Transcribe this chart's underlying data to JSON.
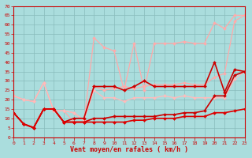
{
  "xlabel": "Vent moyen/en rafales ( km/h )",
  "xlim": [
    0,
    23
  ],
  "ylim": [
    0,
    70
  ],
  "yticks": [
    0,
    5,
    10,
    15,
    20,
    25,
    30,
    35,
    40,
    45,
    50,
    55,
    60,
    65,
    70
  ],
  "xticks": [
    0,
    1,
    2,
    3,
    4,
    5,
    6,
    7,
    8,
    9,
    10,
    11,
    12,
    13,
    14,
    15,
    16,
    17,
    18,
    19,
    20,
    21,
    22,
    23
  ],
  "bg_color": "#aadddd",
  "grid_color": "#88bbbb",
  "series": [
    {
      "x": [
        0,
        1,
        2,
        3,
        4,
        5,
        6,
        7,
        8,
        9,
        10,
        11,
        12,
        13,
        14,
        15,
        16,
        17,
        18,
        19,
        20,
        21,
        22,
        23
      ],
      "y": [
        22,
        20,
        19,
        29,
        14,
        14,
        13,
        9,
        27,
        25,
        26,
        27,
        26,
        27,
        28,
        28,
        28,
        29,
        28,
        28,
        32,
        34,
        62,
        65
      ],
      "color": "#ffaaaa",
      "marker": "D",
      "markersize": 2.0,
      "linewidth": 0.9,
      "zorder": 2
    },
    {
      "x": [
        0,
        1,
        2,
        3,
        4,
        5,
        6,
        7,
        8,
        9,
        10,
        11,
        12,
        13,
        14,
        15,
        16,
        17,
        18,
        19,
        20,
        21,
        22,
        23
      ],
      "y": [
        22,
        20,
        19,
        29,
        14,
        14,
        8,
        8,
        53,
        48,
        46,
        25,
        50,
        25,
        50,
        50,
        50,
        51,
        50,
        50,
        61,
        58,
        65,
        65
      ],
      "color": "#ffaaaa",
      "marker": "D",
      "markersize": 2.0,
      "linewidth": 0.9,
      "zorder": 2
    },
    {
      "x": [
        0,
        1,
        2,
        3,
        4,
        5,
        6,
        7,
        8,
        9,
        10,
        11,
        12,
        13,
        14,
        15,
        16,
        17,
        18,
        19,
        20,
        21,
        22,
        23
      ],
      "y": [
        22,
        20,
        19,
        29,
        14,
        14,
        13,
        9,
        25,
        21,
        21,
        19,
        21,
        21,
        21,
        22,
        21,
        22,
        21,
        21,
        21,
        21,
        31,
        35
      ],
      "color": "#ffbbbb",
      "marker": "D",
      "markersize": 2.0,
      "linewidth": 0.9,
      "zorder": 2
    },
    {
      "x": [
        0,
        1,
        2,
        3,
        4,
        5,
        6,
        7,
        8,
        9,
        10,
        11,
        12,
        13,
        14,
        15,
        16,
        17,
        18,
        19,
        20,
        21,
        22,
        23
      ],
      "y": [
        13,
        7,
        5,
        15,
        15,
        8,
        8,
        8,
        10,
        10,
        11,
        11,
        11,
        11,
        11,
        12,
        12,
        13,
        13,
        14,
        22,
        22,
        33,
        35
      ],
      "color": "#cc0000",
      "marker": "D",
      "markersize": 2.0,
      "linewidth": 1.2,
      "zorder": 3
    },
    {
      "x": [
        0,
        1,
        2,
        3,
        4,
        5,
        6,
        7,
        8,
        9,
        10,
        11,
        12,
        13,
        14,
        15,
        16,
        17,
        18,
        19,
        20,
        21,
        22,
        23
      ],
      "y": [
        13,
        7,
        5,
        15,
        15,
        8,
        10,
        10,
        27,
        27,
        27,
        25,
        27,
        30,
        27,
        27,
        27,
        27,
        27,
        27,
        40,
        24,
        36,
        35
      ],
      "color": "#cc0000",
      "marker": "D",
      "markersize": 2.0,
      "linewidth": 1.2,
      "zorder": 3
    },
    {
      "x": [
        0,
        1,
        2,
        3,
        4,
        5,
        6,
        7,
        8,
        9,
        10,
        11,
        12,
        13,
        14,
        15,
        16,
        17,
        18,
        19,
        20,
        21,
        22,
        23
      ],
      "y": [
        13,
        7,
        5,
        15,
        15,
        8,
        8,
        8,
        8,
        8,
        8,
        8,
        9,
        9,
        10,
        10,
        10,
        11,
        11,
        11,
        13,
        13,
        14,
        15
      ],
      "color": "#dd0000",
      "marker": "D",
      "markersize": 2.0,
      "linewidth": 1.2,
      "zorder": 3
    }
  ]
}
